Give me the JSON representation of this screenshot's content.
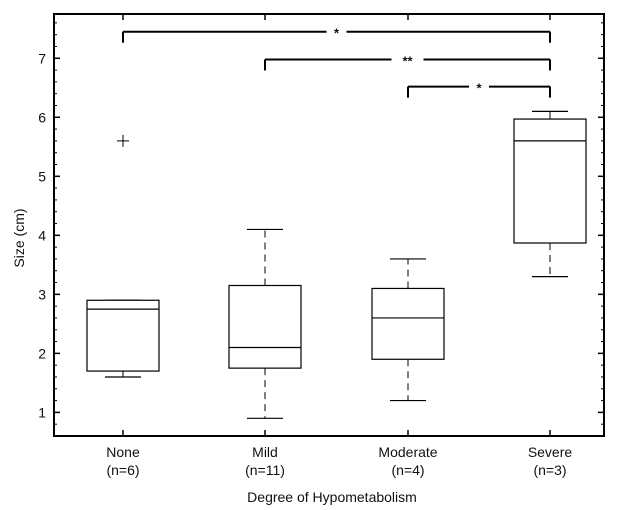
{
  "chart_data": {
    "type": "boxplot",
    "xlabel": "Degree of Hypometabolism",
    "ylabel": "Size (cm)",
    "ylim": [
      0.6,
      7.75
    ],
    "yticks": [
      1,
      2,
      3,
      4,
      5,
      6,
      7
    ],
    "grid": false,
    "categories": [
      {
        "name": "None",
        "n_label": "(n=6)",
        "whisker_low": 1.6,
        "q1": 1.7,
        "median": 2.75,
        "q3": 2.9,
        "whisker_high": 2.9,
        "outliers": [
          5.6
        ]
      },
      {
        "name": "Mild",
        "n_label": "(n=11)",
        "whisker_low": 0.9,
        "q1": 1.75,
        "median": 2.1,
        "q3": 3.15,
        "whisker_high": 4.1,
        "outliers": []
      },
      {
        "name": "Moderate",
        "n_label": "(n=4)",
        "whisker_low": 1.2,
        "q1": 1.9,
        "median": 2.6,
        "q3": 3.1,
        "whisker_high": 3.6,
        "outliers": []
      },
      {
        "name": "Severe",
        "n_label": "(n=3)",
        "whisker_low": 3.3,
        "q1": 3.87,
        "median": 5.6,
        "q3": 5.97,
        "whisker_high": 6.1,
        "outliers": []
      }
    ],
    "significance": [
      {
        "from": 0,
        "to": 3,
        "label": "*",
        "y": 7.45
      },
      {
        "from": 1,
        "to": 3,
        "label": "**",
        "y": 6.98
      },
      {
        "from": 2,
        "to": 3,
        "label": "*",
        "y": 6.52
      }
    ]
  }
}
